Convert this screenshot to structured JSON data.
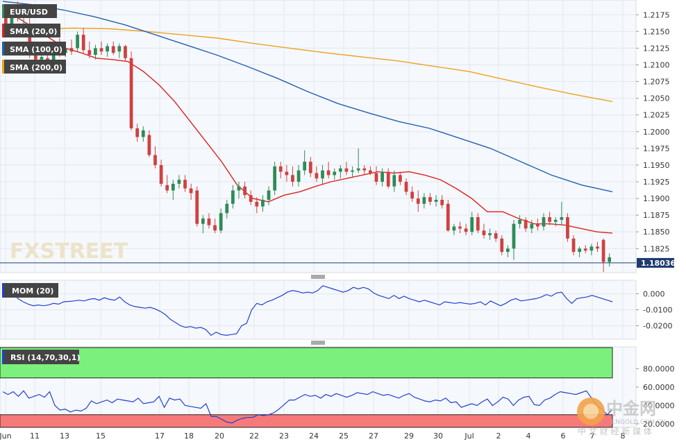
{
  "chart_data": [
    {
      "type": "candlestick",
      "symbol": "EUR/USD",
      "indicators": [
        {
          "name": "SMA (20,0)",
          "color": "#e02020"
        },
        {
          "name": "SMA (100,0)",
          "color": "#2060b0"
        },
        {
          "name": "SMA (200,0)",
          "color": "#f0a020"
        }
      ],
      "y_ticks": [
        "1.2175",
        "1.2150",
        "1.2125",
        "1.2100",
        "1.2075",
        "1.2050",
        "1.2025",
        "1.2000",
        "1.1975",
        "1.1950",
        "1.1925",
        "1.1900",
        "1.1875",
        "1.1850",
        "1.1825"
      ],
      "ylim": [
        1.179,
        1.2195
      ],
      "last_price": "1.18036",
      "last_price_value": 1.18036,
      "watermark": "FXSTREET",
      "x_ticks": [
        "Jun",
        "11",
        "13",
        "15",
        "17",
        "18",
        "20",
        "22",
        "23",
        "24",
        "25",
        "27",
        "29",
        "30",
        "Jul",
        "2",
        "4",
        "6",
        "7",
        "8"
      ],
      "candles": [
        [
          1.217,
          1.2185,
          1.215,
          1.216
        ],
        [
          1.216,
          1.219,
          1.2152,
          1.2182
        ],
        [
          1.218,
          1.2195,
          1.2165,
          1.217
        ],
        [
          1.2175,
          1.219,
          1.2158,
          1.2185
        ],
        [
          1.216,
          1.217,
          1.211,
          1.2122
        ],
        [
          1.212,
          1.213,
          1.2102,
          1.2108
        ],
        [
          1.2108,
          1.212,
          1.2095,
          1.2112
        ],
        [
          1.211,
          1.2122,
          1.21,
          1.2105
        ],
        [
          1.2105,
          1.2135,
          1.21,
          1.2128
        ],
        [
          1.2128,
          1.214,
          1.2112,
          1.2118
        ],
        [
          1.2118,
          1.213,
          1.2112,
          1.2125
        ],
        [
          1.2125,
          1.2138,
          1.2115,
          1.212
        ],
        [
          1.2125,
          1.215,
          1.212,
          1.2145
        ],
        [
          1.2145,
          1.2155,
          1.2118,
          1.2122
        ],
        [
          1.2122,
          1.2135,
          1.211,
          1.2115
        ],
        [
          1.2115,
          1.213,
          1.2108,
          1.2125
        ],
        [
          1.2125,
          1.2135,
          1.2115,
          1.212
        ],
        [
          1.212,
          1.2132,
          1.2112,
          1.2128
        ],
        [
          1.2128,
          1.2135,
          1.2115,
          1.2118
        ],
        [
          1.212,
          1.2132,
          1.211,
          1.2128
        ],
        [
          1.2128,
          1.213,
          1.2105,
          1.211
        ],
        [
          1.211,
          1.212,
          1.2002,
          1.2005
        ],
        [
          1.2005,
          1.2012,
          1.1985,
          1.1992
        ],
        [
          1.1992,
          1.2008,
          1.1985,
          1.2002
        ],
        [
          1.1995,
          1.2002,
          1.1962,
          1.1965
        ],
        [
          1.1965,
          1.1978,
          1.1945,
          1.195
        ],
        [
          1.195,
          1.1958,
          1.1918,
          1.1922
        ],
        [
          1.192,
          1.1935,
          1.1908,
          1.1912
        ],
        [
          1.1912,
          1.1928,
          1.1898,
          1.1922
        ],
        [
          1.1922,
          1.1935,
          1.1915,
          1.1928
        ],
        [
          1.1928,
          1.1935,
          1.191,
          1.1915
        ],
        [
          1.1915,
          1.1922,
          1.1898,
          1.1908
        ],
        [
          1.1912,
          1.1918,
          1.1858,
          1.1862
        ],
        [
          1.1862,
          1.1875,
          1.1848,
          1.187
        ],
        [
          1.187,
          1.1878,
          1.1855,
          1.186
        ],
        [
          1.186,
          1.187,
          1.1848,
          1.1852
        ],
        [
          1.1852,
          1.1885,
          1.1848,
          1.1878
        ],
        [
          1.1878,
          1.1898,
          1.187,
          1.1892
        ],
        [
          1.1892,
          1.192,
          1.1885,
          1.1912
        ],
        [
          1.1912,
          1.1925,
          1.19,
          1.1918
        ],
        [
          1.1918,
          1.1925,
          1.19,
          1.1905
        ],
        [
          1.1905,
          1.1912,
          1.189,
          1.1895
        ],
        [
          1.1895,
          1.1902,
          1.1878,
          1.1888
        ],
        [
          1.1888,
          1.1905,
          1.188,
          1.1898
        ],
        [
          1.1898,
          1.1918,
          1.189,
          1.1912
        ],
        [
          1.1912,
          1.1955,
          1.1905,
          1.1948
        ],
        [
          1.1948,
          1.1955,
          1.193,
          1.194
        ],
        [
          1.194,
          1.195,
          1.1925,
          1.1935
        ],
        [
          1.1935,
          1.1948,
          1.1918,
          1.1925
        ],
        [
          1.1925,
          1.195,
          1.1918,
          1.1942
        ],
        [
          1.1942,
          1.1972,
          1.1935,
          1.1955
        ],
        [
          1.1955,
          1.1962,
          1.1932,
          1.1938
        ],
        [
          1.1938,
          1.1948,
          1.1925,
          1.193
        ],
        [
          1.193,
          1.195,
          1.1922,
          1.1942
        ],
        [
          1.1942,
          1.1955,
          1.193,
          1.1935
        ],
        [
          1.1935,
          1.1945,
          1.1928,
          1.194
        ],
        [
          1.194,
          1.195,
          1.193,
          1.1945
        ],
        [
          1.1945,
          1.1955,
          1.1935,
          1.194
        ],
        [
          1.194,
          1.1948,
          1.1932,
          1.1942
        ],
        [
          1.1942,
          1.1975,
          1.1938,
          1.1945
        ],
        [
          1.1945,
          1.195,
          1.1935,
          1.1942
        ],
        [
          1.1942,
          1.1948,
          1.1935,
          1.1938
        ],
        [
          1.1938,
          1.1948,
          1.192,
          1.1925
        ],
        [
          1.1925,
          1.1945,
          1.1918,
          1.194
        ],
        [
          1.194,
          1.1945,
          1.1915,
          1.1918
        ],
        [
          1.1918,
          1.1942,
          1.191,
          1.1935
        ],
        [
          1.1935,
          1.194,
          1.192,
          1.1925
        ],
        [
          1.1925,
          1.193,
          1.1905,
          1.191
        ],
        [
          1.191,
          1.1918,
          1.1895,
          1.19
        ],
        [
          1.19,
          1.1912,
          1.188,
          1.1892
        ],
        [
          1.1892,
          1.1908,
          1.1885,
          1.1902
        ],
        [
          1.1902,
          1.1908,
          1.189,
          1.1895
        ],
        [
          1.1895,
          1.1905,
          1.1888,
          1.1898
        ],
        [
          1.1898,
          1.1905,
          1.1885,
          1.189
        ],
        [
          1.1892,
          1.1898,
          1.185,
          1.1852
        ],
        [
          1.1852,
          1.1862,
          1.1845,
          1.1858
        ],
        [
          1.1858,
          1.1865,
          1.1848,
          1.1855
        ],
        [
          1.1855,
          1.1862,
          1.1845,
          1.185
        ],
        [
          1.185,
          1.188,
          1.1845,
          1.1872
        ],
        [
          1.1872,
          1.1878,
          1.1848,
          1.1852
        ],
        [
          1.1852,
          1.1862,
          1.184,
          1.1845
        ],
        [
          1.1845,
          1.1855,
          1.1838,
          1.1848
        ],
        [
          1.1848,
          1.1852,
          1.1835,
          1.184
        ],
        [
          1.184,
          1.1845,
          1.1815,
          1.182
        ],
        [
          1.182,
          1.183,
          1.1812,
          1.1825
        ],
        [
          1.1825,
          1.1868,
          1.1808,
          1.1862
        ],
        [
          1.1862,
          1.1875,
          1.1855,
          1.1868
        ],
        [
          1.1868,
          1.1872,
          1.185,
          1.1855
        ],
        [
          1.1855,
          1.1868,
          1.1848,
          1.1862
        ],
        [
          1.1862,
          1.187,
          1.1852,
          1.1858
        ],
        [
          1.1858,
          1.1878,
          1.1852,
          1.1872
        ],
        [
          1.1872,
          1.188,
          1.186,
          1.1865
        ],
        [
          1.1865,
          1.1872,
          1.1858,
          1.1868
        ],
        [
          1.1868,
          1.1895,
          1.186,
          1.1872
        ],
        [
          1.1872,
          1.1878,
          1.1835,
          1.184
        ],
        [
          1.184,
          1.1845,
          1.1815,
          1.182
        ],
        [
          1.182,
          1.1828,
          1.1812,
          1.1825
        ],
        [
          1.1825,
          1.183,
          1.1818,
          1.1822
        ],
        [
          1.1822,
          1.1832,
          1.1815,
          1.1828
        ],
        [
          1.1828,
          1.1835,
          1.182,
          1.1825
        ],
        [
          1.1838,
          1.184,
          1.179,
          1.1805
        ],
        [
          1.1805,
          1.1818,
          1.1798,
          1.1812
        ]
      ],
      "sma20": [
        1.2182,
        1.217,
        1.2155,
        1.214,
        1.2125,
        1.2118,
        1.211,
        1.2108,
        1.2105,
        1.209,
        1.207,
        1.2045,
        1.2015,
        1.1985,
        1.1955,
        1.192,
        1.19,
        1.1895,
        1.1905,
        1.191,
        1.1918,
        1.1925,
        1.193,
        1.1935,
        1.194,
        1.1938,
        1.194,
        1.1935,
        1.1928,
        1.1915,
        1.19,
        1.188,
        1.188,
        1.187,
        1.1862,
        1.1862,
        1.186,
        1.1855,
        1.185,
        1.1848
      ],
      "sma100": [
        1.2195,
        1.219,
        1.2182,
        1.2172,
        1.216,
        1.2145,
        1.213,
        1.2115,
        1.2098,
        1.208,
        1.206,
        1.2042,
        1.2028,
        1.2015,
        1.2005,
        1.199,
        1.1975,
        1.1955,
        1.1935,
        1.192,
        1.191
      ],
      "sma200": [
        1.2152,
        1.2154,
        1.2155,
        1.2154,
        1.215,
        1.2145,
        1.214,
        1.2132,
        1.2125,
        1.2118,
        1.2112,
        1.2106,
        1.2098,
        1.209,
        1.2078,
        1.2066,
        1.2055,
        1.2045
      ],
      "title": ""
    },
    {
      "type": "line",
      "label": "MOM (20)",
      "y_ticks": [
        "0.000",
        "-0.0100",
        "-0.0200"
      ],
      "ylim": [
        -0.028,
        0.008
      ],
      "color": "#2040d0",
      "values": [
        0.0,
        0.0004,
        0.0,
        -0.003,
        -0.005,
        -0.0065,
        -0.0075,
        -0.007,
        -0.0075,
        -0.007,
        -0.006,
        -0.0065,
        -0.005,
        -0.0048,
        -0.0045,
        -0.004,
        -0.0045,
        -0.0035,
        -0.003,
        -0.004,
        -0.0025,
        -0.0035,
        -0.004,
        -0.002,
        -0.005,
        -0.007,
        -0.008,
        -0.0085,
        -0.009,
        -0.0085,
        -0.0095,
        -0.011,
        -0.013,
        -0.016,
        -0.018,
        -0.02,
        -0.021,
        -0.0205,
        -0.0215,
        -0.021,
        -0.0225,
        -0.026,
        -0.024,
        -0.0255,
        -0.026,
        -0.0255,
        -0.025,
        -0.02,
        -0.0185,
        -0.01,
        -0.006,
        -0.007,
        -0.005,
        -0.004,
        -0.0025,
        -0.001,
        0.001,
        0.002,
        0.0015,
        0.0005,
        0.001,
        0.0005,
        0.002,
        0.005,
        0.004,
        0.003,
        0.002,
        0.001,
        0.002,
        0.004,
        0.003,
        0.004,
        0.003,
        0.0005,
        -0.001,
        -0.002,
        -0.003,
        -0.001,
        -0.003,
        -0.0015,
        -0.003,
        -0.004,
        -0.005,
        -0.004,
        -0.005,
        -0.006,
        -0.007,
        -0.005,
        -0.0055,
        -0.006,
        -0.0055,
        -0.006,
        -0.0065,
        -0.006,
        -0.005,
        -0.007,
        -0.0045,
        -0.006,
        -0.0075,
        -0.006,
        -0.004,
        -0.003,
        -0.0045,
        -0.004,
        -0.0035,
        -0.003,
        -0.002,
        -0.0005,
        -0.0015,
        0.0005,
        0.001,
        -0.003,
        -0.006,
        -0.003,
        -0.0025,
        -0.002,
        -0.001,
        -0.002,
        -0.003,
        -0.004,
        -0.005
      ],
      "title": ""
    },
    {
      "type": "line",
      "label": "RSI (14,70,30,1)",
      "y_ticks": [
        "80.0000",
        "60.0000",
        "40.0000",
        "20.0000"
      ],
      "ylim": [
        17,
        103
      ],
      "overbought": 70,
      "oversold": 30,
      "color": "#2040d0",
      "values": [
        55,
        52,
        55,
        50,
        56,
        48,
        50,
        52,
        49,
        55,
        40,
        35,
        36,
        33,
        35,
        34,
        37,
        45,
        42,
        44,
        46,
        43,
        47,
        46,
        45,
        44,
        48,
        42,
        43,
        44,
        50,
        38,
        48,
        46,
        47,
        40,
        39,
        38,
        37,
        42,
        28,
        28,
        25,
        22,
        21,
        24,
        26,
        27,
        27,
        30,
        29,
        30,
        32,
        36,
        41,
        46,
        46,
        49,
        52,
        50,
        51,
        48,
        52,
        50,
        53,
        51,
        49,
        51,
        54,
        53,
        52,
        55,
        53,
        51,
        52,
        50,
        48,
        51,
        53,
        49,
        47,
        45,
        44,
        46,
        45,
        48,
        43,
        44,
        38,
        40,
        42,
        40,
        44,
        47,
        40,
        44,
        49,
        47,
        40,
        46,
        49,
        50,
        41,
        40,
        46,
        48,
        52,
        55,
        54,
        53,
        52,
        54,
        56,
        48,
        40,
        36,
        30,
        36
      ],
      "title": ""
    }
  ],
  "watermark_cn": "中金网",
  "watermark_cn_sub": "中 文 财 经 新 媒 体",
  "watermark_cn_url": "CNGOLD.COM.CN",
  "colors": {
    "up": "#2e8b57",
    "down": "#d04040",
    "bg": "#f5f8fc",
    "price_line": "#1f3a70",
    "tag_bg": "#444444"
  }
}
